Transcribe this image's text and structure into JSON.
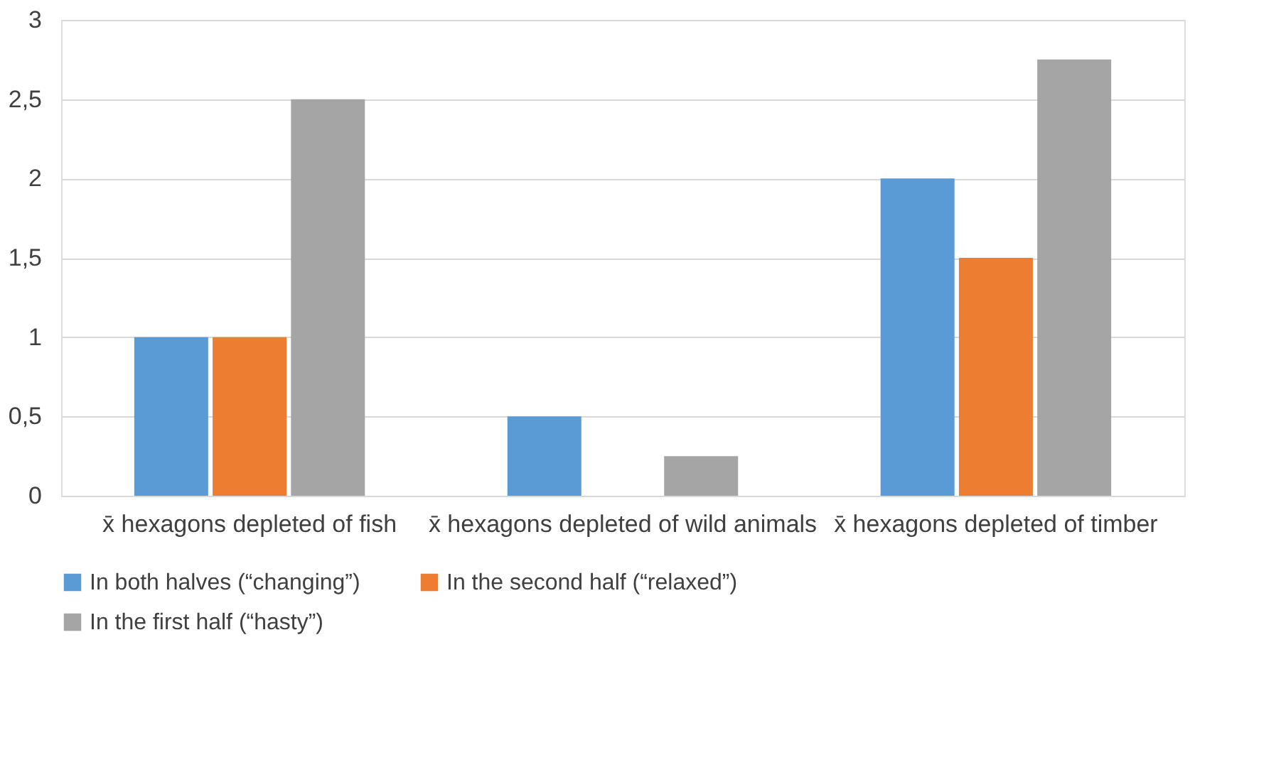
{
  "chart_data": {
    "type": "bar",
    "categories": [
      "x̄ hexagons depleted of fish",
      "x̄ hexagons depleted of wild animals",
      "x̄ hexagons depleted of timber"
    ],
    "series": [
      {
        "name": "In both halves (“changing”)",
        "color": "#5b9bd5",
        "values": [
          1,
          0.5,
          2
        ]
      },
      {
        "name": "In the second half (“relaxed”)",
        "color": "#ed7d31",
        "values": [
          1,
          0,
          1.5
        ]
      },
      {
        "name": "In the first half (“hasty”)",
        "color": "#a5a5a5",
        "values": [
          2.5,
          0.25,
          2.75
        ]
      }
    ],
    "ylim": [
      0,
      3
    ],
    "yticks": [
      0,
      {
        "value": 0.5,
        "label": "0,5"
      },
      1,
      {
        "value": 1.5,
        "label": "1,5"
      },
      2,
      {
        "value": 2.5,
        "label": "2,5"
      },
      3
    ],
    "grid": "y",
    "legend": "bottom"
  }
}
